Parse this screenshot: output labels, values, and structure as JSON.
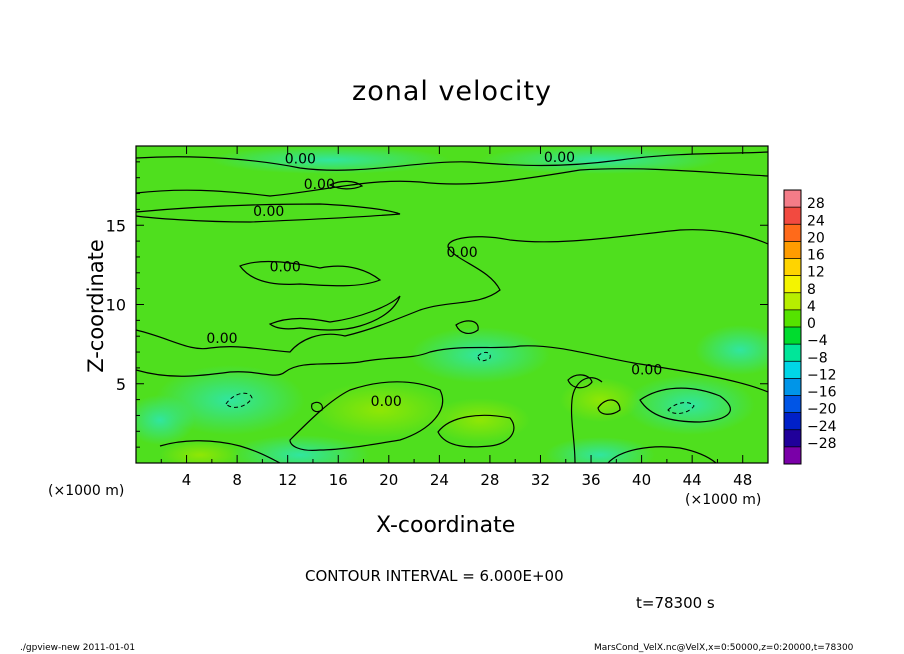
{
  "page": {
    "title": "zonal velocity",
    "x_axis_label": "X-coordinate",
    "y_axis_label": "Z-coordinate",
    "x_unit_left": "(×1000 m)",
    "x_unit_right": "(×1000 m)",
    "contour_interval": "CONTOUR INTERVAL = 6.000E+00",
    "time_label": "t=78300 s",
    "footer_left": "./gpview-new   2011-01-01",
    "footer_right": "MarsCond_VelX.nc@VelX,x=0:50000,z=0:20000,t=78300"
  },
  "chart_data": {
    "type": "heatmap",
    "title": "zonal velocity",
    "xlabel": "X-coordinate",
    "ylabel": "Z-coordinate",
    "x_unit": "×1000 m",
    "xlim": [
      0,
      50
    ],
    "ylim": [
      0,
      20
    ],
    "x_ticks": [
      4,
      8,
      12,
      16,
      20,
      24,
      28,
      32,
      36,
      40,
      44,
      48
    ],
    "y_ticks": [
      5,
      10,
      15
    ],
    "contour_interval": 6.0,
    "contour_labels": [
      {
        "text": "0.00",
        "x": 13,
        "z": 19.2
      },
      {
        "text": "0.00",
        "x": 33.5,
        "z": 19.3
      },
      {
        "text": "0.00",
        "x": 14.5,
        "z": 17.6
      },
      {
        "text": "0.00",
        "x": 10.5,
        "z": 15.9
      },
      {
        "text": "0.00",
        "x": 11.8,
        "z": 12.4
      },
      {
        "text": "0.00",
        "x": 25.8,
        "z": 13.3
      },
      {
        "text": "0.00",
        "x": 6.8,
        "z": 7.9
      },
      {
        "text": "0.00",
        "x": 40.4,
        "z": 5.9
      },
      {
        "text": "0.00",
        "x": 19.8,
        "z": 3.9
      }
    ],
    "colorbar": {
      "levels": [
        28,
        24,
        20,
        16,
        12,
        8,
        4,
        0,
        -4,
        -8,
        -12,
        -16,
        -20,
        -24,
        -28
      ],
      "colors": [
        "#f47c88",
        "#f24a40",
        "#ff6a1a",
        "#ff9c00",
        "#ffd400",
        "#f4f400",
        "#b7ee00",
        "#55e300",
        "#00dc2e",
        "#00e699",
        "#00d6e6",
        "#0095e8",
        "#0055e6",
        "#0020c8",
        "#20009a",
        "#7a00a8"
      ]
    },
    "dominant_range": [
      -4,
      4
    ],
    "grid": false
  }
}
